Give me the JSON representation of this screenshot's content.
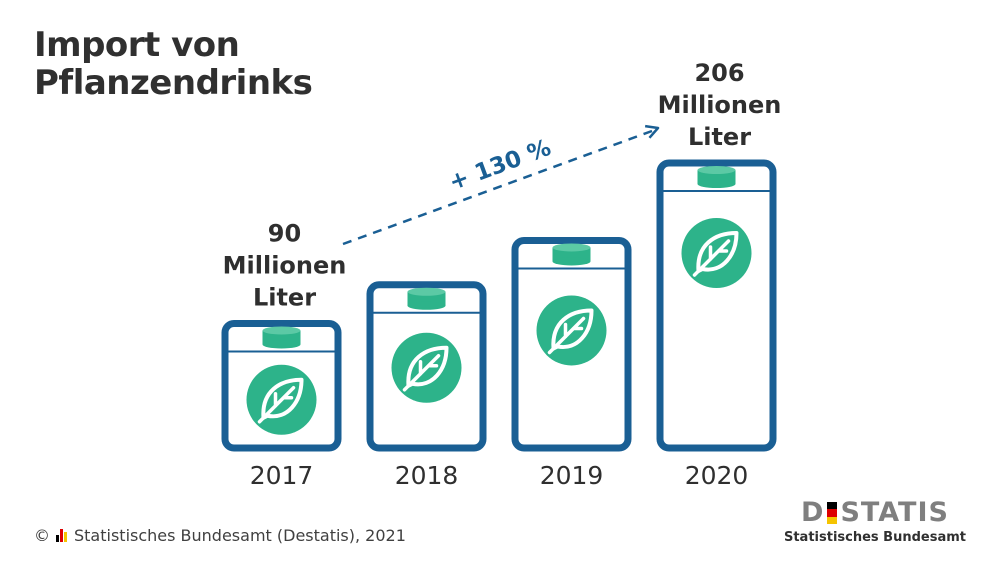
{
  "title_lines": [
    "Import von",
    "Pflanzendrinks"
  ],
  "chart_data": {
    "type": "bar",
    "categories": [
      "2017",
      "2018",
      "2019",
      "2020"
    ],
    "values": [
      90,
      118,
      150,
      206
    ],
    "unit": "Millionen Liter",
    "value_labels": [
      {
        "category": "2017",
        "lines": [
          "90",
          "Millionen",
          "Liter"
        ]
      },
      {
        "category": "2020",
        "lines": [
          "206",
          "Millionen",
          "Liter"
        ]
      }
    ],
    "annotation": {
      "text": "+ 130 %",
      "from": "2017",
      "to": "2020"
    },
    "ylim": [
      0,
      206
    ]
  },
  "colors": {
    "carton_border": "#1a5f94",
    "leaf_circle": "#2db38a",
    "text": "#2f2f2f"
  },
  "icons": [
    "leaf-icon",
    "carton-cap-icon"
  ],
  "footer": {
    "copyright_symbol": "©",
    "source": "Statistisches Bundesamt (Destatis), 2021"
  },
  "logo": {
    "word_left": "D",
    "word_right": "STATIS",
    "subtitle": "Statistisches Bundesamt"
  }
}
